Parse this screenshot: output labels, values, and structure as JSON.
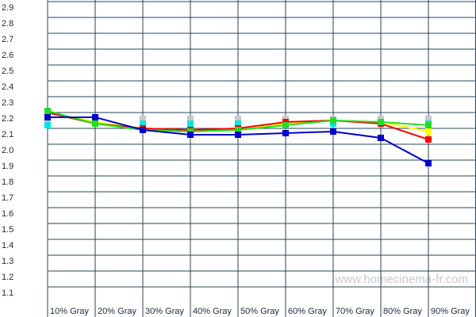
{
  "chart_data": {
    "type": "line",
    "categories": [
      "10% Gray",
      "20% Gray",
      "30% Gray",
      "40% Gray",
      "50% Gray",
      "60% Gray",
      "70% Gray",
      "80% Gray",
      "90% Gray"
    ],
    "series": [
      {
        "color": "#c8c8c8",
        "line": false,
        "values": [
          2.2,
          2.2,
          2.2,
          2.2,
          2.2,
          2.2,
          2.2,
          2.2,
          2.2
        ]
      },
      {
        "color": "#00e5e5",
        "line": false,
        "values": [
          2.16,
          2.17,
          2.17,
          2.17,
          2.17,
          2.17,
          2.17,
          2.17,
          2.17
        ]
      },
      {
        "color": "#ffff00",
        "line": true,
        "values": [
          2.24,
          2.18,
          2.14,
          2.13,
          2.13,
          2.17,
          2.19,
          2.18,
          2.12
        ]
      },
      {
        "color": "#ff0000",
        "line": true,
        "values": [
          2.24,
          2.17,
          2.14,
          2.13,
          2.14,
          2.18,
          2.19,
          2.17,
          2.07
        ]
      },
      {
        "color": "#22dd22",
        "line": true,
        "values": [
          2.25,
          2.17,
          2.13,
          2.12,
          2.13,
          2.16,
          2.19,
          2.18,
          2.16
        ]
      },
      {
        "color": "#0000cc",
        "line": true,
        "values": [
          2.21,
          2.21,
          2.13,
          2.1,
          2.1,
          2.11,
          2.12,
          2.08,
          1.92
        ]
      }
    ],
    "ylim": [
      1.05,
      2.95
    ],
    "yticks": [
      1.1,
      1.2,
      1.3,
      1.4,
      1.5,
      1.6,
      1.7,
      1.8,
      1.9,
      {
        "value": 2.0,
        "label": "2.0"
      },
      2.1,
      2.2,
      2.3,
      2.4,
      2.5,
      2.6,
      2.7,
      2.8,
      2.9
    ],
    "grid": true,
    "watermark": "www.homecinema-fr.com"
  }
}
